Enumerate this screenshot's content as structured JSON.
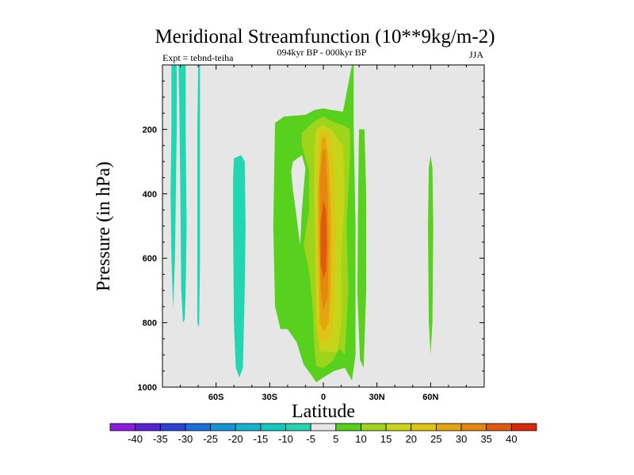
{
  "chart_data": {
    "type": "contour",
    "title": "Meridional Streamfunction (10**9kg/m-2)",
    "subtitle": "094kyr BP - 000kyr BP",
    "left_note": "Expt = tebnd-teiha",
    "right_note": "JJA",
    "xlabel": "Latitude",
    "ylabel": "Pressure (in hPa)",
    "xlim": [
      -90,
      90
    ],
    "ylim": [
      0,
      1000
    ],
    "y_inverted": true,
    "x_ticks": [
      {
        "value": -60,
        "label": "60S"
      },
      {
        "value": -30,
        "label": "30S"
      },
      {
        "value": 0,
        "label": "0"
      },
      {
        "value": 30,
        "label": "30N"
      },
      {
        "value": 60,
        "label": "60N"
      }
    ],
    "y_ticks": [
      {
        "value": 200,
        "label": "200"
      },
      {
        "value": 400,
        "label": "400"
      },
      {
        "value": 600,
        "label": "600"
      },
      {
        "value": 800,
        "label": "800"
      },
      {
        "value": 1000,
        "label": "1000"
      }
    ],
    "background_color": "#e6e6e6",
    "levels": [
      -40,
      -35,
      -30,
      -25,
      -20,
      -15,
      -10,
      -5,
      5,
      10,
      15,
      20,
      25,
      30,
      35,
      40
    ],
    "colors": [
      "#8c1cde",
      "#5a22d2",
      "#2b42d6",
      "#1a6fd8",
      "#1595d4",
      "#14b4d0",
      "#14c8c0",
      "#21d6b0",
      "#e8e8e8",
      "#58d01e",
      "#9ed41a",
      "#c6d41a",
      "#e0c415",
      "#e4a512",
      "#e48610",
      "#e05a0c",
      "#d8280a"
    ],
    "regions": [
      {
        "level_index": 7,
        "points": [
          [
            -85,
            0
          ],
          [
            -82,
            0
          ],
          [
            -82,
            200
          ],
          [
            -82.5,
            400
          ],
          [
            -83,
            600
          ],
          [
            -84,
            760
          ],
          [
            -85,
            600
          ],
          [
            -85.5,
            400
          ],
          [
            -85,
            200
          ]
        ]
      },
      {
        "level_index": 7,
        "points": [
          [
            -81,
            0
          ],
          [
            -77,
            0
          ],
          [
            -77,
            200
          ],
          [
            -76.5,
            500
          ],
          [
            -77,
            700
          ],
          [
            -77.5,
            790
          ],
          [
            -78.5,
            800
          ],
          [
            -79.5,
            700
          ],
          [
            -80,
            400
          ],
          [
            -80.5,
            150
          ]
        ]
      },
      {
        "level_index": 7,
        "points": [
          [
            -70,
            0
          ],
          [
            -69,
            0
          ],
          [
            -69,
            300
          ],
          [
            -69,
            600
          ],
          [
            -69.5,
            815
          ],
          [
            -70.5,
            800
          ],
          [
            -70.5,
            500
          ],
          [
            -70.5,
            200
          ]
        ]
      },
      {
        "level_index": 7,
        "points": [
          [
            -50,
            290
          ],
          [
            -46,
            280
          ],
          [
            -44,
            300
          ],
          [
            -43.5,
            500
          ],
          [
            -44,
            700
          ],
          [
            -45,
            940
          ],
          [
            -47,
            970
          ],
          [
            -49,
            940
          ],
          [
            -50,
            800
          ],
          [
            -50.5,
            500
          ],
          [
            -50.5,
            350
          ]
        ]
      },
      {
        "level_index": 9,
        "points": [
          [
            -27,
            180
          ],
          [
            -22,
            160
          ],
          [
            -10,
            155
          ],
          [
            -5,
            140
          ],
          [
            0,
            135
          ],
          [
            5,
            140
          ],
          [
            11,
            145
          ],
          [
            16,
            0
          ],
          [
            17,
            0
          ],
          [
            17,
            200
          ],
          [
            18,
            500
          ],
          [
            18,
            900
          ],
          [
            16,
            980
          ],
          [
            12,
            940
          ],
          [
            6,
            950
          ],
          [
            0,
            970
          ],
          [
            -4,
            985
          ],
          [
            -7,
            960
          ],
          [
            -11,
            930
          ],
          [
            -15,
            860
          ],
          [
            -20,
            820
          ],
          [
            -24,
            820
          ],
          [
            -27,
            750
          ],
          [
            -28,
            500
          ]
        ]
      },
      {
        "level_index": 9,
        "points": [
          [
            20,
            200
          ],
          [
            23,
            200
          ],
          [
            24,
            400
          ],
          [
            24,
            700
          ],
          [
            22.5,
            940
          ],
          [
            20.5,
            915
          ],
          [
            19,
            700
          ],
          [
            19.5,
            400
          ]
        ]
      },
      {
        "level_index": 9,
        "points": [
          [
            60,
            280
          ],
          [
            61,
            320
          ],
          [
            61.5,
            500
          ],
          [
            61,
            800
          ],
          [
            60,
            900
          ],
          [
            59,
            800
          ],
          [
            58.5,
            500
          ],
          [
            59,
            320
          ]
        ]
      },
      {
        "level_index": 8,
        "points": [
          [
            -17,
            300
          ],
          [
            -12,
            280
          ],
          [
            -10,
            320
          ],
          [
            -12,
            450
          ],
          [
            -13,
            560
          ],
          [
            -15,
            470
          ],
          [
            -17,
            390
          ],
          [
            -18,
            330
          ]
        ]
      },
      {
        "level_index": 10,
        "points": [
          [
            -12,
            210
          ],
          [
            -5,
            175
          ],
          [
            0,
            160
          ],
          [
            5,
            175
          ],
          [
            12,
            190
          ],
          [
            15,
            200
          ],
          [
            15,
            280
          ],
          [
            13,
            500
          ],
          [
            14,
            700
          ],
          [
            12,
            900
          ],
          [
            9,
            880
          ],
          [
            5,
            920
          ],
          [
            0,
            940
          ],
          [
            -4,
            935
          ],
          [
            -5,
            880
          ],
          [
            -6,
            750
          ],
          [
            -8,
            640
          ],
          [
            -11,
            560
          ],
          [
            -8,
            450
          ],
          [
            -8,
            330
          ],
          [
            -12,
            250
          ]
        ]
      },
      {
        "level_index": 11,
        "points": [
          [
            -4,
            200
          ],
          [
            0,
            185
          ],
          [
            5,
            205
          ],
          [
            11,
            250
          ],
          [
            12,
            400
          ],
          [
            10,
            600
          ],
          [
            10,
            800
          ],
          [
            8,
            890
          ],
          [
            3,
            890
          ],
          [
            -2,
            890
          ],
          [
            -4,
            800
          ],
          [
            -4.5,
            600
          ],
          [
            -5,
            400
          ],
          [
            -5,
            250
          ]
        ]
      },
      {
        "level_index": 12,
        "points": [
          [
            -2,
            210
          ],
          [
            0,
            200
          ],
          [
            4,
            215
          ],
          [
            6,
            350
          ],
          [
            7,
            500
          ],
          [
            6,
            700
          ],
          [
            5,
            840
          ],
          [
            0,
            870
          ],
          [
            -3,
            840
          ],
          [
            -3,
            700
          ],
          [
            -4,
            500
          ],
          [
            -3,
            300
          ]
        ]
      },
      {
        "level_index": 13,
        "points": [
          [
            -1,
            230
          ],
          [
            1,
            220
          ],
          [
            3,
            300
          ],
          [
            4.5,
            500
          ],
          [
            4,
            700
          ],
          [
            3,
            800
          ],
          [
            0,
            830
          ],
          [
            -2,
            800
          ],
          [
            -2.5,
            600
          ],
          [
            -3,
            400
          ]
        ]
      },
      {
        "level_index": 14,
        "points": [
          [
            -0.5,
            270
          ],
          [
            1,
            260
          ],
          [
            2.5,
            400
          ],
          [
            3,
            550
          ],
          [
            2.5,
            720
          ],
          [
            0,
            760
          ],
          [
            -1.5,
            700
          ],
          [
            -2,
            550
          ],
          [
            -2,
            350
          ]
        ]
      },
      {
        "level_index": 15,
        "points": [
          [
            0,
            420
          ],
          [
            1.5,
            450
          ],
          [
            2,
            560
          ],
          [
            1.5,
            640
          ],
          [
            0,
            660
          ],
          [
            -1.5,
            620
          ],
          [
            -1.5,
            500
          ]
        ]
      }
    ]
  }
}
